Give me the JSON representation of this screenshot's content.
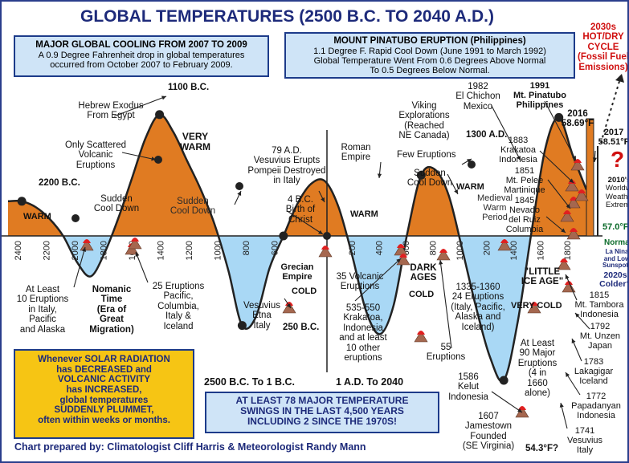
{
  "colors": {
    "warm": "#e07b22",
    "cold": "#a9d8f5",
    "curve": "#222222",
    "title": "#1d2a7a",
    "box_fill": "#cfe4f7",
    "box_border": "#1d3b8a",
    "solar_fill": "#f6c514",
    "volcano": "#a5674f",
    "lava": "#e02020",
    "accent_red": "#d01010",
    "accent_green": "#0b6b2a"
  },
  "chart_data": {
    "type": "line",
    "title": "GLOBAL TEMPERATURES (2500 B.C. TO 2040 A.D.)",
    "xlabel": "",
    "ylabel": "",
    "x_era_bc": "2500 B.C. To 1 B.C.",
    "x_era_ad": "1 A.D. To 2040",
    "bc_ticks": [
      "2400",
      "2200",
      "2000",
      "1800",
      "1600",
      "1400",
      "1200",
      "1000",
      "800",
      "600"
    ],
    "ad_ticks": [
      "200",
      "400",
      "600",
      "800",
      "1000",
      "200",
      "1400",
      "1600",
      "1800"
    ],
    "series": [
      {
        "values": [
          0.6,
          0.6,
          0.5,
          0.3,
          0,
          -0.45,
          -0.7,
          -0.3,
          0.3,
          1.0,
          1.7,
          2.1,
          1.8,
          1.3,
          0.8,
          0.2,
          -0.6,
          -1.55,
          -1.4,
          -0.55,
          0,
          0.55,
          0.9,
          0.95,
          0.5,
          -0.35,
          -1.3,
          -1.7,
          -1.2,
          0.05,
          1.05,
          1.15,
          0.7,
          -0.25,
          -1.25,
          -2.1,
          -2.5,
          -1.5,
          0.05,
          1.5,
          2.05,
          1.4,
          0.8
        ]
      }
    ],
    "markers": [
      {
        "label": "2200 B.C.",
        "value": 0.6
      },
      {
        "label": "1100 B.C.",
        "value": 2.1
      },
      {
        "label": "250 B.C.",
        "value": -1.55
      },
      {
        "label": "1300 A.D.",
        "value": 1.15
      },
      {
        "label": "54.3°F?",
        "value": -2.5
      },
      {
        "label": "2016 58.69°F",
        "value": 2.0
      },
      {
        "label": "2017 58.51°F",
        "value": 1.75
      }
    ]
  },
  "title": "GLOBAL TEMPERATURES (2500 B.C. TO 2040 A.D.)",
  "cooling_box": {
    "title": "MAJOR GLOBAL COOLING FROM 2007 TO 2009",
    "line1": "A 0.9 Degree Fahrenheit drop in global temperatures",
    "line2": "occurred from October 2007 to February 2009."
  },
  "pinatubo_box": {
    "title": "MOUNT PINATUBO ERUPTION (Philippines)",
    "line1": "1.1 Degree F. Rapid Cool Down (June 1991 to March 1992)",
    "line2": "Global Temperature Went From 0.6 Degrees Above Normal",
    "line3": "To 0.5 Degrees Below Normal."
  },
  "future": {
    "hotdry_1": "2030s",
    "hotdry_2": "HOT/DRY",
    "hotdry_3": "CYCLE",
    "hotdry_4": "(Fossil Fuel",
    "hotdry_5": "Emissions)",
    "question": "?",
    "worldwide_1": "2010's",
    "worldwide_2": "Worldwide",
    "worldwide_3": "Weather",
    "worldwide_4": "Extremes",
    "normal_temp": "57.0°F",
    "normal": "Normal",
    "lanina_1": "La Nina",
    "lanina_2": "and Low",
    "lanina_3": "Sunspots",
    "colder_1": "2020s",
    "colder_2": "Colder?"
  },
  "labels": {
    "y2200bc": "2200 B.C.",
    "y1100bc": "1100 B.C.",
    "warm1": "WARM",
    "very_warm_1": "VERY",
    "very_warm_2": "WARM",
    "exodus_1": "Hebrew Exodus",
    "exodus_2": "From Egypt",
    "scattered_1": "Only Scattered",
    "scattered_2": "Volcanic",
    "scattered_3": "Eruptions",
    "sudden1_1": "Sudden",
    "sudden1_2": "Cool Down",
    "sudden2_1": "Sudden",
    "sudden2_2": "Cool Down",
    "vesuvius79_1": "79 A.D.",
    "vesuvius79_2": "Vesuvius Erupts",
    "vesuvius79_3": "Pompeii Destroyed",
    "vesuvius79_4": "in Italy",
    "christ_1": "4 B.C.",
    "christ_2": "Birth of",
    "christ_3": "Christ",
    "roman_1": "Roman",
    "roman_2": "Empire",
    "warm2": "WARM",
    "few": "Few Eruptions",
    "sudden3_1": "Sudden",
    "sudden3_2": "Cool Down",
    "viking_1": "Viking",
    "viking_2": "Explorations",
    "viking_3": "(Reached",
    "viking_4": "NE Canada)",
    "y1300": "1300 A.D.",
    "warm3": "WARM",
    "medieval_1": "Medieval",
    "medieval_2": "Warm",
    "medieval_3": "Period",
    "chichon_1": "1982",
    "chichon_2": "El Chichon",
    "chichon_3": "Mexico",
    "pinatubo_1": "1991",
    "pinatubo_2": "Mt. Pinatubo",
    "pinatubo_3": "Philippines",
    "krakatoa_1": "1883",
    "krakatoa_2": "Krakatoa",
    "krakatoa_3": "Indonesia",
    "pelee_1": "1851",
    "pelee_2": "Mt. Pelee",
    "pelee_3": "Martinique",
    "ruiz_1": "1845",
    "ruiz_2": "Nevado",
    "ruiz_3": "del Ruiz",
    "ruiz_4": "Columbia",
    "y2016_1": "2016",
    "y2016_2": "58.69°F",
    "y2017_1": "2017",
    "y2017_2": "58.51°F",
    "ten_1": "At Least",
    "ten_2": "10 Eruptions",
    "ten_3": "in Italy,",
    "ten_4": "Pacific",
    "ten_5": "and Alaska",
    "nomanic_1": "Nomanic",
    "nomanic_2": "Time",
    "nomanic_3": "(Era of",
    "nomanic_4": "Great",
    "nomanic_5": "Migration)",
    "twentyfive_1": "25 Eruptions",
    "twentyfive_2": "Pacific,",
    "twentyfive_3": "Columbia,",
    "twentyfive_4": "Italy &",
    "twentyfive_5": "Iceland",
    "grecian_1": "Grecian",
    "grecian_2": "Empire",
    "cold1": "COLD",
    "etna_1": "Vesuvius",
    "etna_2": "Etna",
    "etna_3": "Italy",
    "y250bc": "250 B.C.",
    "thirtyfive_1": "35 Volcanic",
    "thirtyfive_2": "Eruptions",
    "dark_1": "DARK",
    "dark_2": "AGES",
    "cold2": "COLD",
    "krakatoa535_1": "535-550",
    "krakatoa535_2": "Krakatoa,",
    "krakatoa535_3": "Indonesia",
    "krakatoa535_4": "and at least",
    "krakatoa535_5": "10 other",
    "krakatoa535_6": "eruptions",
    "fiftyfive_1": "55",
    "fiftyfive_2": "Eruptions",
    "c1335_1": "1335-1360",
    "c1335_2": "24 Eruptions",
    "c1335_3": "(Italy, Pacific,",
    "c1335_4": "Alaska and",
    "c1335_5": "Iceland)",
    "lia_1": "\"LITTLE",
    "lia_2": "ICE AGE\"",
    "very_cold": "VERY COLD",
    "ninety_1": "At Least",
    "ninety_2": "90 Major",
    "ninety_3": "Eruptions",
    "ninety_4": "(4 in",
    "ninety_5": "1660",
    "ninety_6": "alone)",
    "kelut_1": "1586",
    "kelut_2": "Kelut",
    "kelut_3": "Indonesia",
    "jamestown_1": "1607",
    "jamestown_2": "Jamestown",
    "jamestown_3": "Founded",
    "jamestown_4": "(SE Virginia)",
    "min_temp": "54.3°F?",
    "tambora_1": "1815",
    "tambora_2": "Mt. Tambora",
    "tambora_3": "Indonesia",
    "unzen_1": "1792",
    "unzen_2": "Mt. Unzen",
    "unzen_3": "Japan",
    "laki_1": "1783",
    "laki_2": "Lakagigar",
    "laki_3": "Iceland",
    "papa_1": "1772",
    "papa_2": "Papadanyan",
    "papa_3": "Indonesia",
    "vesuvius1741_1": "1741",
    "vesuvius1741_2": "Vesuvius",
    "vesuvius1741_3": "Italy"
  },
  "solar_box": {
    "line1": "Whenever SOLAR RADIATION",
    "line2": "has DECREASED and",
    "line3": "VOLCANIC ACTIVITY",
    "line4": "has INCREASED,",
    "line5": "global temperatures",
    "line6": "SUDDENLY PLUMMET,",
    "line7": "often within weeks or months."
  },
  "era_bc": "2500 B.C. To 1 B.C.",
  "era_ad": "1 A.D. To 2040",
  "swings_box": {
    "line1": "AT LEAST 78 MAJOR TEMPERATURE",
    "line2": "SWINGS IN THE LAST 4,500 YEARS",
    "line3": "INCLUDING 2 SINCE THE 1970S!"
  },
  "credit": "Chart prepared by: Climatologist Cliff Harris & Meteorologist Randy Mann"
}
